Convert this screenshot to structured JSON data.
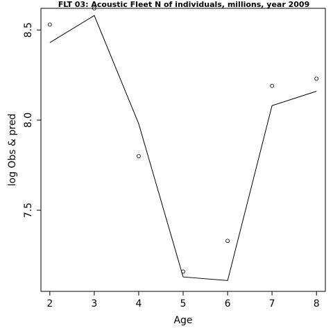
{
  "chart_data": {
    "type": "line",
    "title": "FLT 03: Acoustic Fleet  N of individuals, millions, year 2009",
    "xlabel": "Age",
    "ylabel": "log Obs & pred",
    "x": [
      2,
      3,
      4,
      5,
      6,
      7,
      8
    ],
    "xlim": [
      1.8,
      8.2
    ],
    "ylim": [
      7.05,
      8.62
    ],
    "x_ticks": [
      2,
      3,
      4,
      5,
      6,
      7,
      8
    ],
    "y_ticks": [
      7.5,
      8.0,
      8.5
    ],
    "y_tick_labels": [
      "7.5",
      "8.0",
      "8.5"
    ],
    "series": [
      {
        "style": "points",
        "values": [
          8.53,
          8.62,
          7.8,
          7.16,
          7.33,
          8.19,
          8.23
        ]
      },
      {
        "style": "line",
        "values": [
          8.43,
          8.58,
          7.98,
          7.13,
          7.11,
          8.08,
          8.16
        ]
      }
    ],
    "grid": false,
    "legend": "none"
  }
}
